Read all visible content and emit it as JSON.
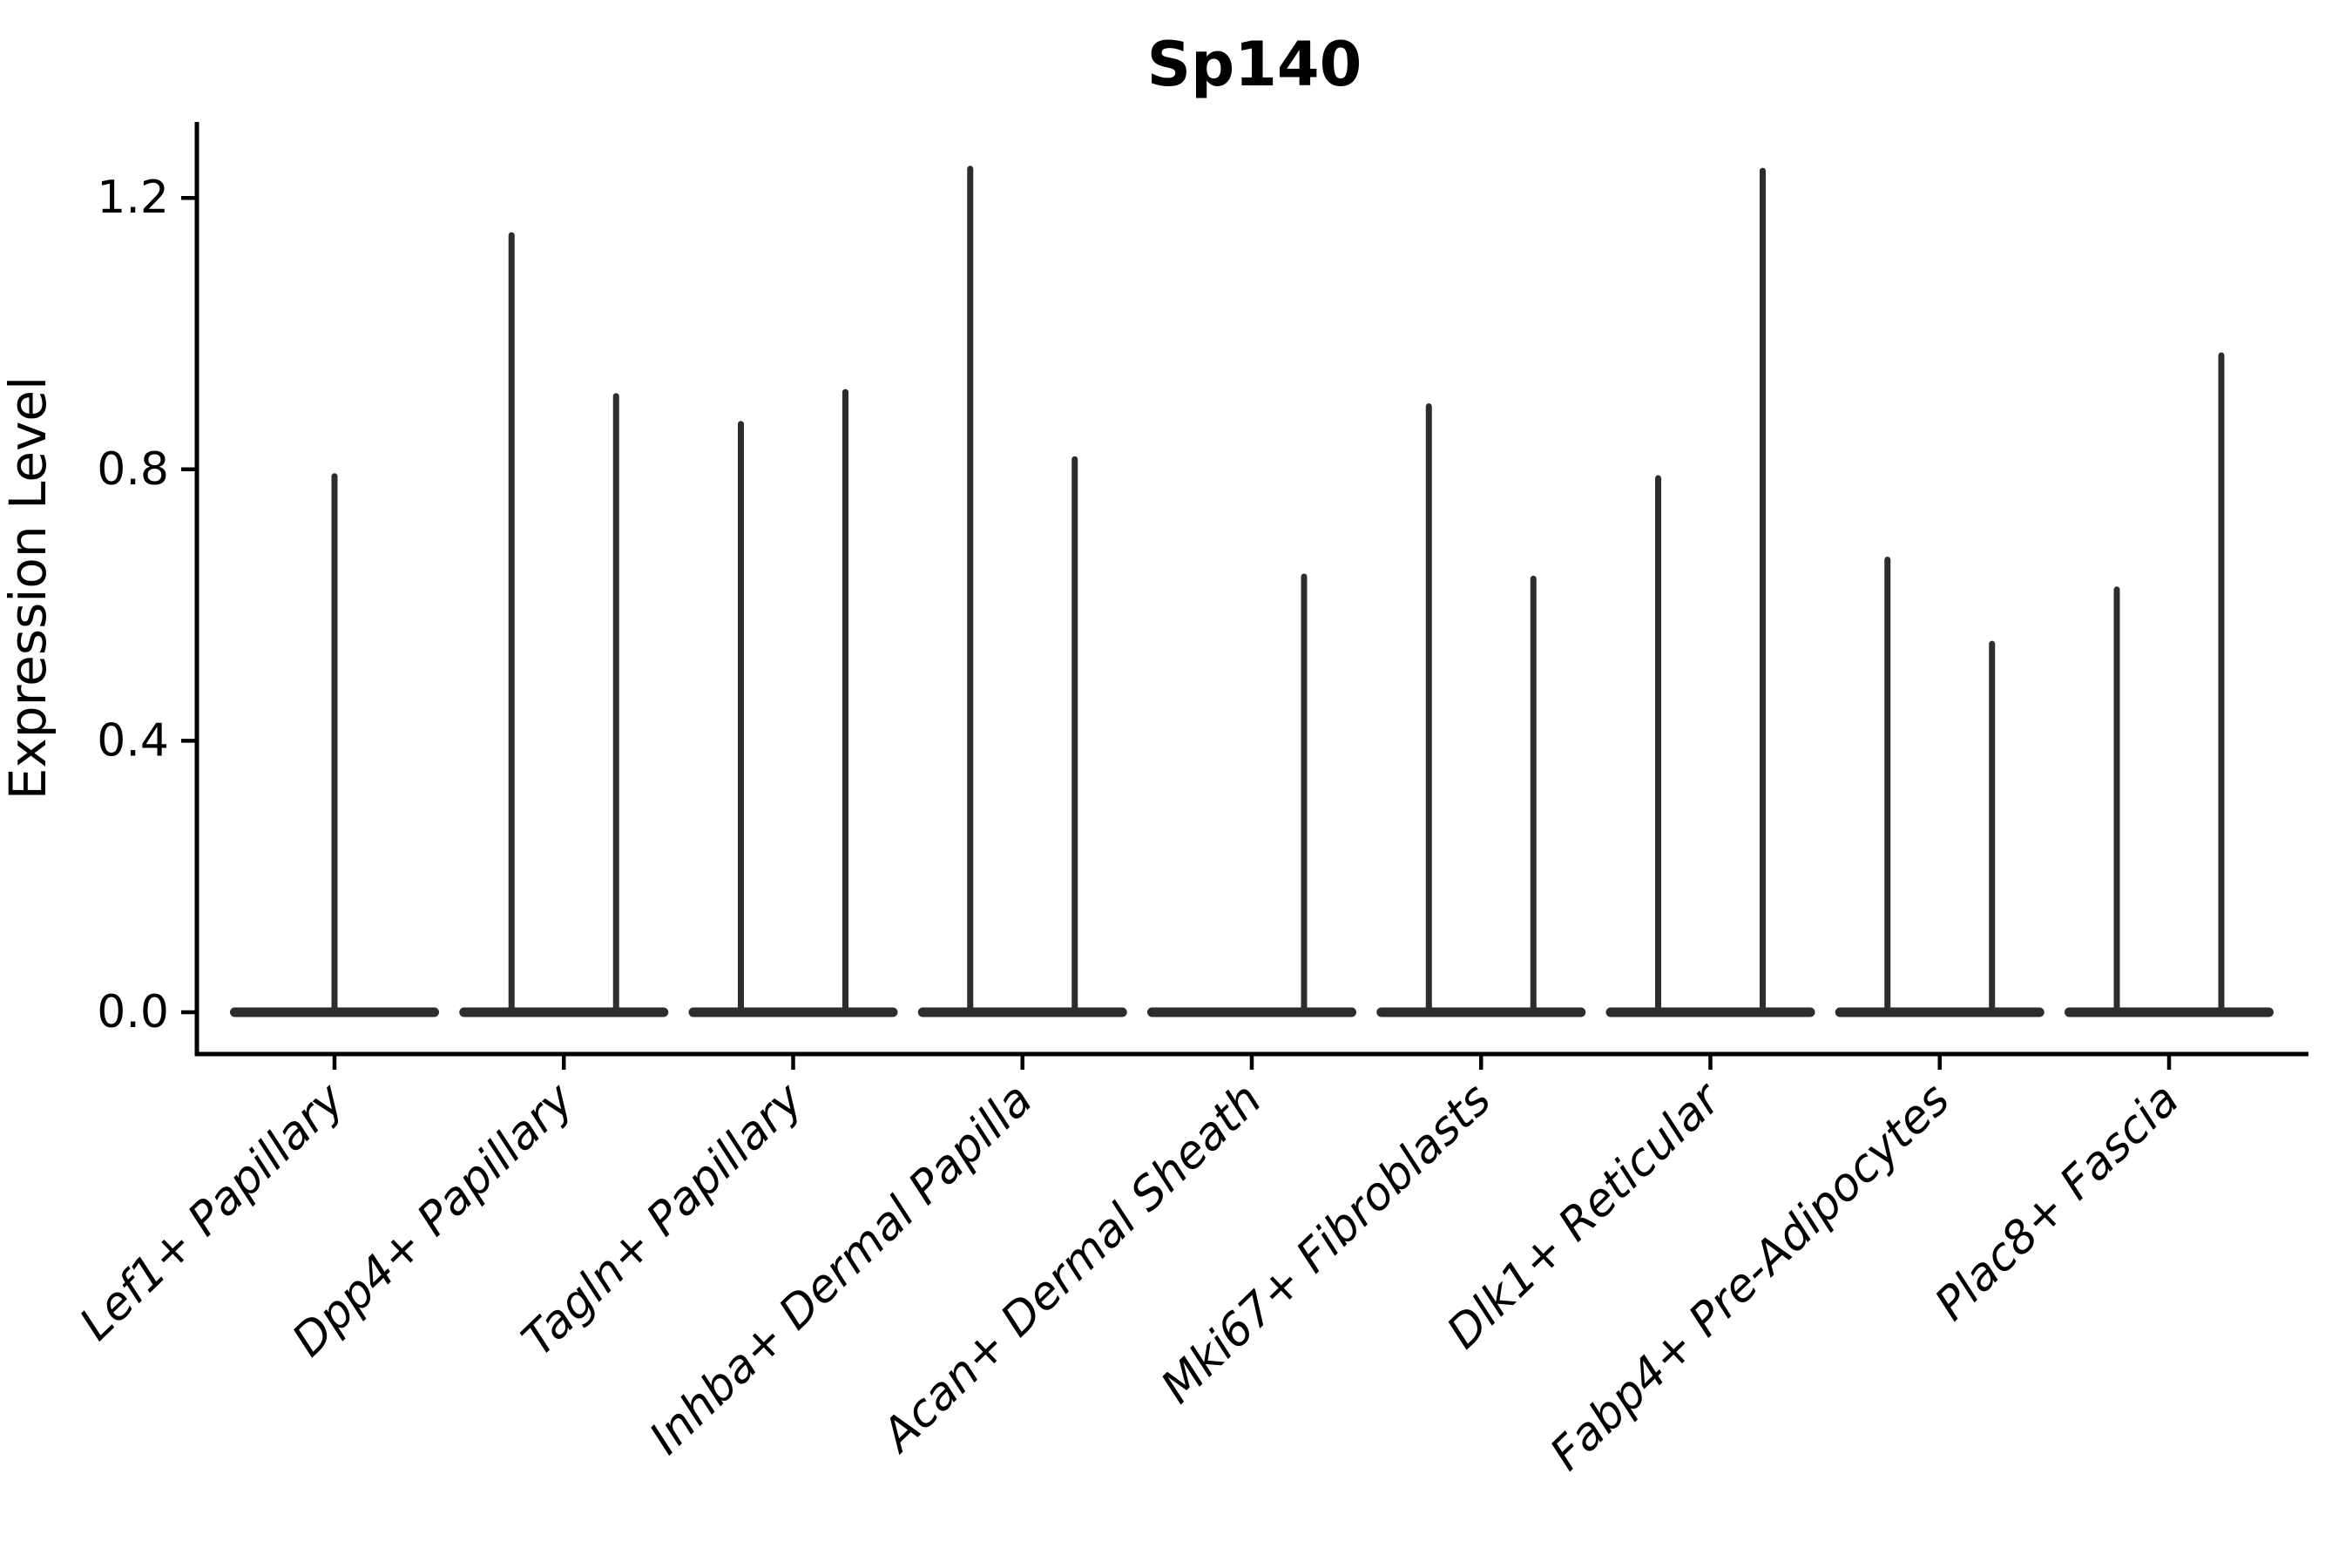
{
  "title": "Sp140",
  "style": {
    "background_color": "#ffffff",
    "violin_color": "#2d2d2d",
    "axis_color": "#000000",
    "text_color": "#000000"
  },
  "chart_data": {
    "type": "violin",
    "title": "Sp140",
    "xlabel": "",
    "ylabel": "Expression Level",
    "ylim": [
      0,
      1.31
    ],
    "yticks": [
      0.0,
      0.4,
      0.8,
      1.2
    ],
    "ytick_labels": [
      "0.0",
      "0.4",
      "0.8",
      "1.2"
    ],
    "grid": false,
    "legend": "none",
    "description": "Needle-like violin plot of Sp140 expression; each category shows a flat mass of zeros at 0 with thin spikes reaching the maximum expression of rare positive cells.",
    "categories": [
      "Lef1+ Papillary",
      "Dpp4+ Papillary",
      "Tagln+ Papillary",
      "Inhba+ Dermal Papilla",
      "Acan+ Dermal Sheath",
      "Mki67+ Fibroblasts",
      "Dlk1+ Reticular",
      "Fabp4+ Pre-Adipocytes",
      "Plac8+ Fascia"
    ],
    "series": [
      {
        "category": "Lef1+ Papillary",
        "spikes": [
          {
            "side": "center",
            "value": 0.795
          }
        ]
      },
      {
        "category": "Dpp4+ Papillary",
        "spikes": [
          {
            "side": "left",
            "value": 1.15
          },
          {
            "side": "right",
            "value": 0.913
          }
        ]
      },
      {
        "category": "Tagln+ Papillary",
        "spikes": [
          {
            "side": "left",
            "value": 0.872
          },
          {
            "side": "right",
            "value": 0.919
          }
        ]
      },
      {
        "category": "Inhba+ Dermal Papilla",
        "spikes": [
          {
            "side": "left",
            "value": 1.248
          },
          {
            "side": "right",
            "value": 0.82
          }
        ]
      },
      {
        "category": "Acan+ Dermal Sheath",
        "spikes": [
          {
            "side": "right",
            "value": 0.647
          }
        ]
      },
      {
        "category": "Mki67+ Fibroblasts",
        "spikes": [
          {
            "side": "left",
            "value": 0.898
          },
          {
            "side": "right",
            "value": 0.644
          }
        ]
      },
      {
        "category": "Dlk1+ Reticular",
        "spikes": [
          {
            "side": "left",
            "value": 0.792
          },
          {
            "side": "right",
            "value": 1.245
          }
        ]
      },
      {
        "category": "Fabp4+ Pre-Adipocytes",
        "spikes": [
          {
            "side": "left",
            "value": 0.672
          },
          {
            "side": "right",
            "value": 0.548
          }
        ]
      },
      {
        "category": "Plac8+ Fascia",
        "spikes": [
          {
            "side": "left",
            "value": 0.628
          },
          {
            "side": "right",
            "value": 0.973
          }
        ]
      }
    ]
  }
}
